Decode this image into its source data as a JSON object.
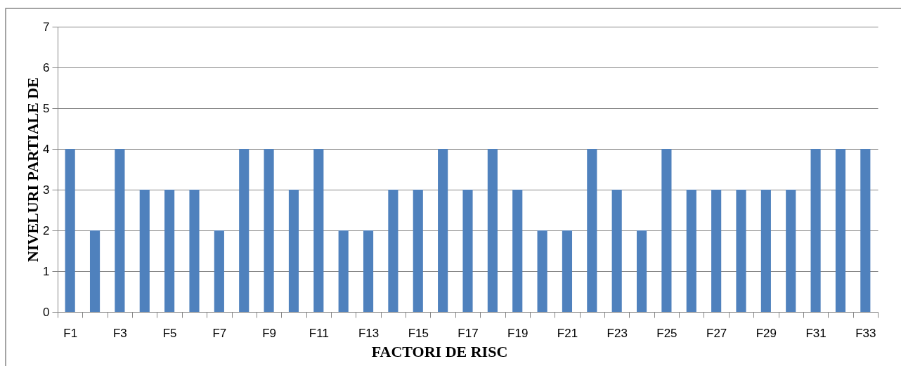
{
  "chart_data": {
    "type": "bar",
    "xlabel": "FACTORI DE RISC",
    "ylabel": "NIVELURI  PARTIALE DE",
    "categories": [
      "F1",
      null,
      "F3",
      null,
      "F5",
      null,
      "F7",
      null,
      "F9",
      null,
      "F11",
      null,
      "F13",
      null,
      "F15",
      null,
      "F17",
      null,
      "F19",
      null,
      "F21",
      null,
      "F23",
      null,
      "F25",
      null,
      "F27",
      null,
      "F29",
      null,
      "F31",
      null,
      "F33"
    ],
    "values": [
      4,
      2,
      4,
      3,
      3,
      3,
      2,
      4,
      4,
      3,
      4,
      2,
      2,
      3,
      3,
      4,
      3,
      4,
      3,
      2,
      2,
      4,
      3,
      2,
      4,
      3,
      3,
      3,
      3,
      3,
      4,
      4,
      4
    ],
    "color": "#4f81bd",
    "ylim": [
      0,
      7
    ],
    "yticks": [
      0,
      1,
      2,
      3,
      4,
      5,
      6,
      7
    ],
    "grid": "y"
  }
}
